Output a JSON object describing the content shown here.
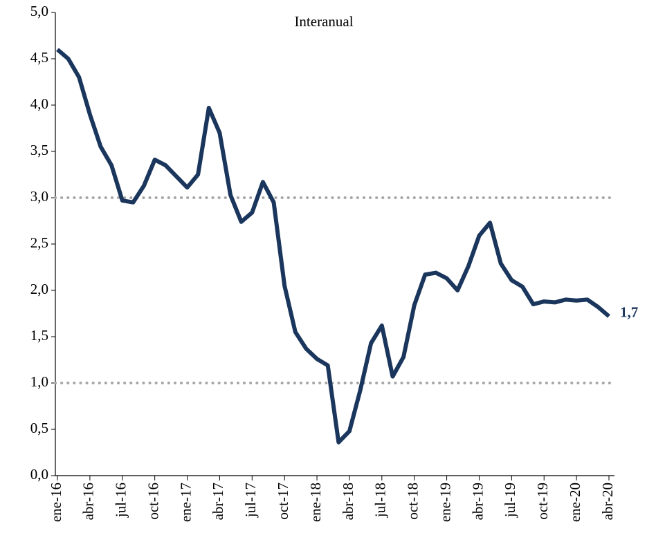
{
  "chart_data": {
    "type": "line",
    "title": "Interanual",
    "categories": [
      "ene-16",
      null,
      null,
      "abr-16",
      null,
      null,
      "jul-16",
      null,
      null,
      "oct-16",
      null,
      null,
      "ene-17",
      null,
      null,
      "abr-17",
      null,
      null,
      "jul-17",
      null,
      null,
      "oct-17",
      null,
      null,
      "ene-18",
      null,
      null,
      "abr-18",
      null,
      null,
      "jul-18",
      null,
      null,
      "oct-18",
      null,
      null,
      "ene-19",
      null,
      null,
      "abr-19",
      null,
      null,
      "jul-19",
      null,
      null,
      "oct-19",
      null,
      null,
      "ene-20",
      null,
      null,
      "abr-20"
    ],
    "series": [
      {
        "name": null,
        "color": "#1b365d",
        "values": [
          4.6,
          4.5,
          4.3,
          3.9,
          3.55,
          3.35,
          2.97,
          2.95,
          3.13,
          3.41,
          3.35,
          3.23,
          3.11,
          3.25,
          3.97,
          3.7,
          3.03,
          2.74,
          2.84,
          3.17,
          2.95,
          2.05,
          1.55,
          1.37,
          1.26,
          1.19,
          0.36,
          0.48,
          0.92,
          1.43,
          1.62,
          1.07,
          1.28,
          1.84,
          2.17,
          2.19,
          2.13,
          2.0,
          2.26,
          2.59,
          2.73,
          2.29,
          2.11,
          2.04,
          1.85,
          1.88,
          1.87,
          1.9,
          1.89,
          1.9,
          1.82,
          1.72
        ],
        "value_labels": [
          null,
          null,
          null,
          null,
          null,
          null,
          null,
          null,
          null,
          null,
          null,
          null,
          null,
          null,
          null,
          null,
          null,
          null,
          null,
          null,
          null,
          null,
          null,
          null,
          null,
          null,
          null,
          null,
          null,
          null,
          null,
          null,
          null,
          null,
          null,
          null,
          null,
          null,
          null,
          null,
          null,
          null,
          null,
          null,
          null,
          null,
          null,
          null,
          null,
          null,
          null,
          "1,7"
        ]
      }
    ],
    "ylim": [
      0,
      5
    ],
    "yticks": [
      {
        "value": 0,
        "label": "0,0"
      },
      {
        "value": 0.5,
        "label": "0,5"
      },
      {
        "value": 1,
        "label": "1,0"
      },
      {
        "value": 1.5,
        "label": "1,5"
      },
      {
        "value": 2,
        "label": "2,0"
      },
      {
        "value": 2.5,
        "label": "2,5"
      },
      {
        "value": 3,
        "label": "3,0"
      },
      {
        "value": 3.5,
        "label": "3,5"
      },
      {
        "value": 4,
        "label": "4,0"
      },
      {
        "value": 4.5,
        "label": "4,5"
      },
      {
        "value": 5,
        "label": "5,0"
      }
    ],
    "reference_lines": [
      1,
      3
    ],
    "reference_color": "#a6a6a6"
  }
}
